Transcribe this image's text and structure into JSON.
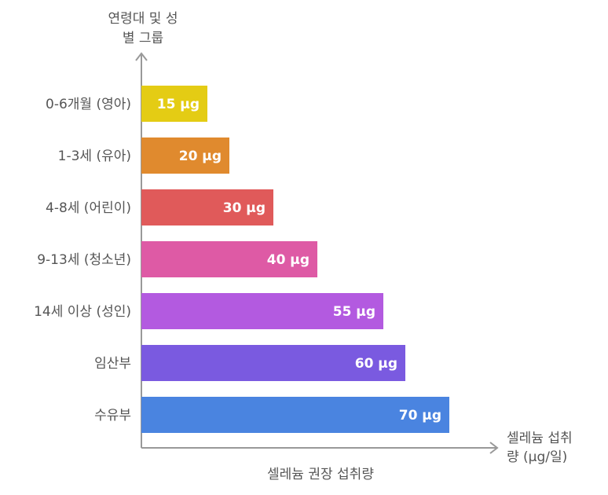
{
  "chart_data": {
    "type": "bar",
    "orientation": "horizontal",
    "ylabel": [
      "연령대 및 성",
      "별 그룹"
    ],
    "xlabel": [
      "셀레늄 섭취",
      "량 (μg/일)"
    ],
    "caption": "셀레늄 권장 섭취량",
    "categories": [
      "0-6개월 (영아)",
      "1-3세 (유아)",
      "4-8세 (어린이)",
      "9-13세 (청소년)",
      "14세 이상 (성인)",
      "임산부",
      "수유부"
    ],
    "values": [
      15,
      20,
      30,
      40,
      55,
      60,
      70
    ],
    "value_labels": [
      "15 μg",
      "20 μg",
      "30 μg",
      "40 μg",
      "55 μg",
      "60 μg",
      "70 μg"
    ],
    "colors": [
      "#e4cc14",
      "#e08a2e",
      "#e05a5a",
      "#de5aa5",
      "#b35ae0",
      "#7a5ae0",
      "#4a84e0"
    ],
    "xlim": [
      0,
      70
    ],
    "grid": false,
    "legend": "none"
  }
}
